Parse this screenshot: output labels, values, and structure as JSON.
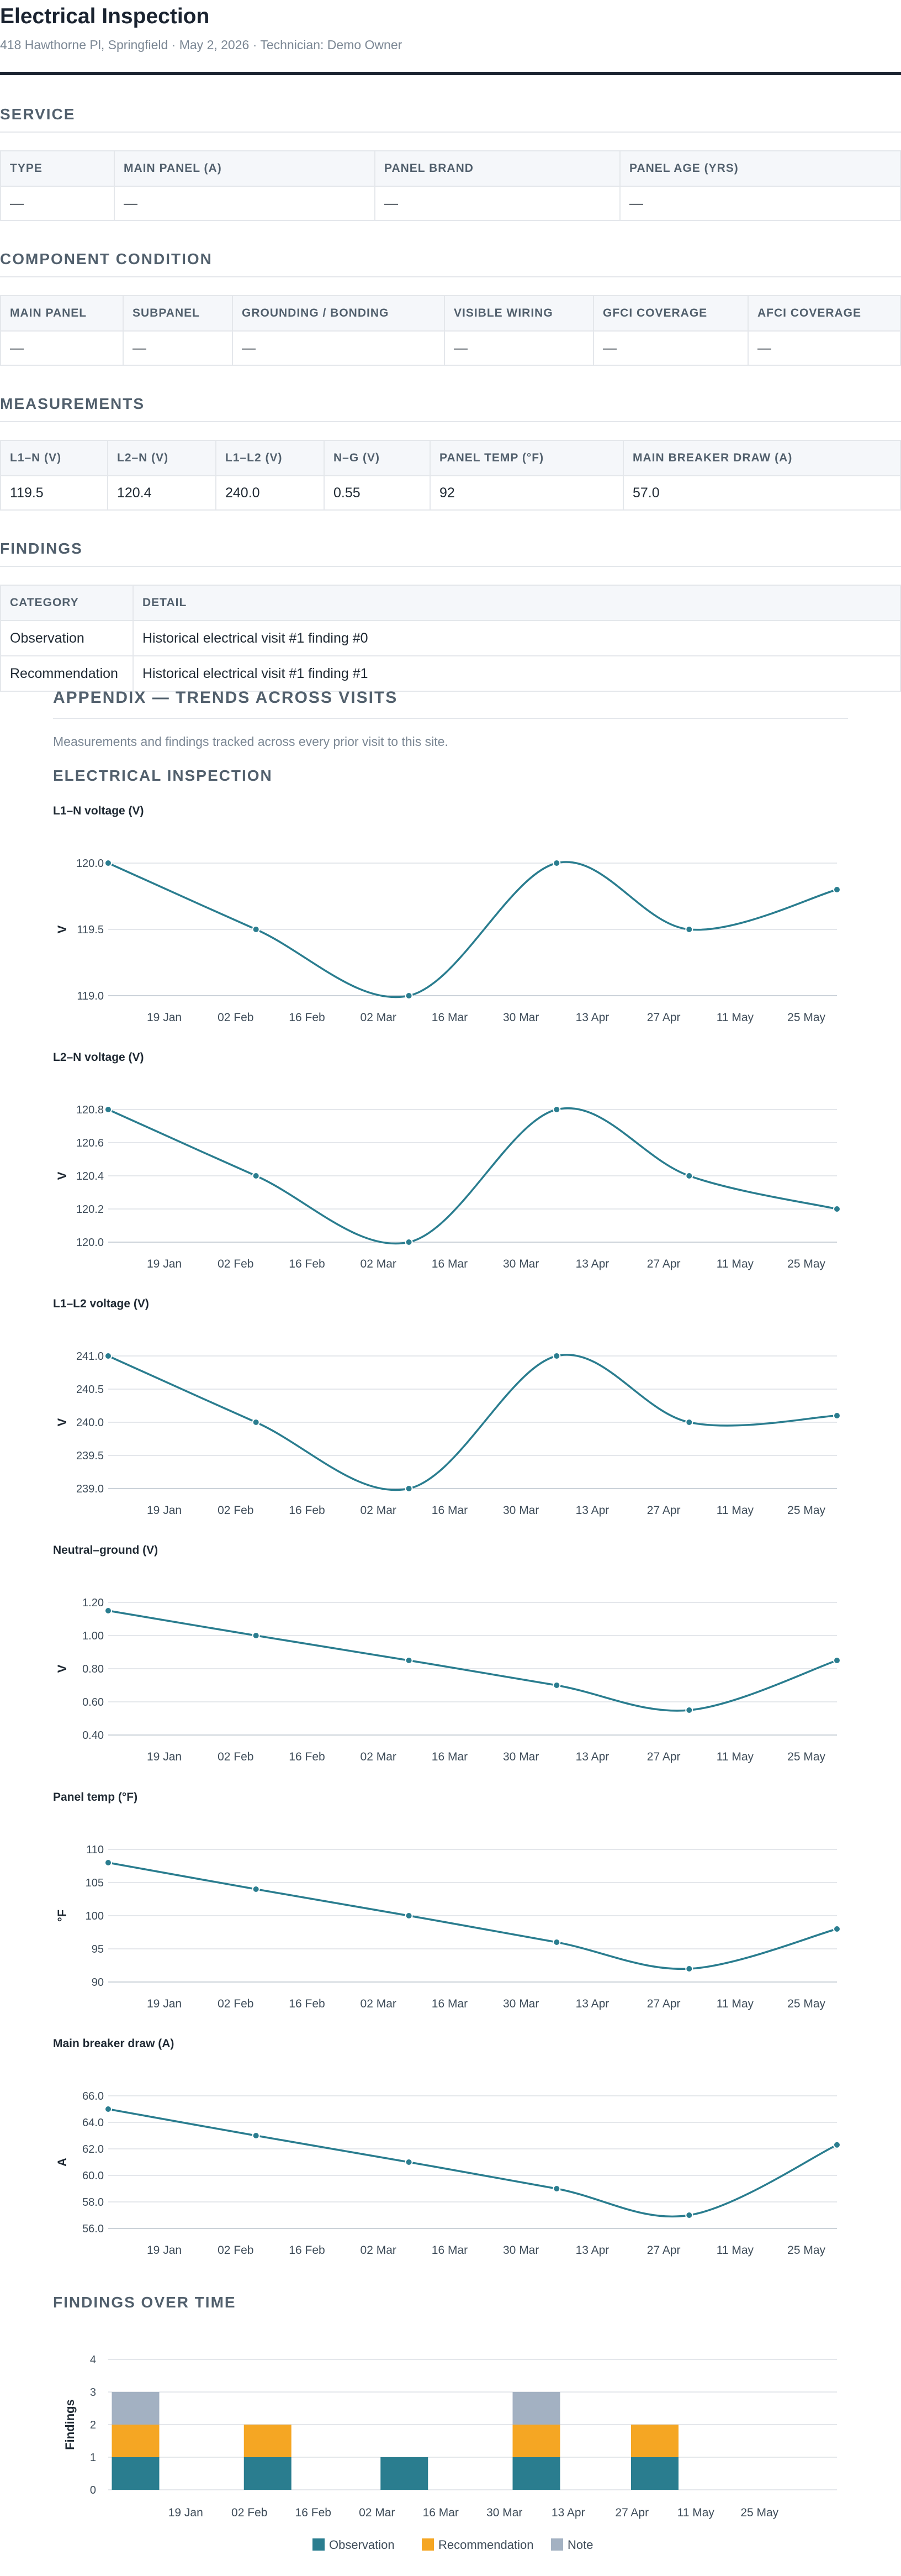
{
  "header": {
    "title": "Electrical Inspection",
    "meta": "418 Hawthorne Pl, Springfield · May 2, 2026 · Technician: Demo Owner"
  },
  "service": {
    "heading": "SERVICE",
    "columns": [
      "TYPE",
      "MAIN PANEL (A)",
      "PANEL BRAND",
      "PANEL AGE (YRS)"
    ],
    "row": [
      "—",
      "—",
      "—",
      "—"
    ]
  },
  "components": {
    "heading": "COMPONENT CONDITION",
    "columns": [
      "MAIN PANEL",
      "SUBPANEL",
      "GROUNDING / BONDING",
      "VISIBLE WIRING",
      "GFCI COVERAGE",
      "AFCI COVERAGE"
    ],
    "row": [
      "—",
      "—",
      "—",
      "—",
      "—",
      "—"
    ]
  },
  "measurements": {
    "heading": "MEASUREMENTS",
    "columns": [
      "L1–N (V)",
      "L2–N (V)",
      "L1–L2 (V)",
      "N–G (V)",
      "PANEL TEMP (°F)",
      "MAIN BREAKER DRAW (A)"
    ],
    "row": [
      "119.5",
      "120.4",
      "240.0",
      "0.55",
      "92",
      "57.0"
    ]
  },
  "findings": {
    "heading": "FINDINGS",
    "columns": [
      "CATEGORY",
      "DETAIL"
    ],
    "rows": [
      [
        "Observation",
        "Historical electrical visit #1 finding #0"
      ],
      [
        "Recommendation",
        "Historical electrical visit #1 finding #1"
      ]
    ]
  },
  "appendix": {
    "title": "APPENDIX — TRENDS ACROSS VISITS",
    "intro": "Measurements and findings tracked across every prior visit to this site.",
    "subheading": "ELECTRICAL INSPECTION",
    "findings_heading": "FINDINGS OVER TIME"
  },
  "colors": {
    "line": "#2a7d8f",
    "observation": "#2a7d8f",
    "recommendation": "#f5a623",
    "note": "#a3b1c2",
    "grid": "#e4e7eb",
    "axis_text": "#3e4c59"
  },
  "chart_data": [
    {
      "type": "line",
      "title": "L1–N voltage (V)",
      "ylabel": "V",
      "x": [
        "2026-01-08",
        "2026-02-06",
        "2026-03-08",
        "2026-04-06",
        "2026-05-02",
        "2026-05-31"
      ],
      "values": [
        120.0,
        119.5,
        119.0,
        120.0,
        119.5,
        119.8
      ],
      "ylim": [
        119.0,
        120.0
      ],
      "yticks": [
        "119.0",
        "119.5",
        "120.0"
      ],
      "xticks": [
        "19 Jan",
        "02 Feb",
        "16 Feb",
        "02 Mar",
        "16 Mar",
        "30 Mar",
        "13 Apr",
        "27 Apr",
        "11 May",
        "25 May"
      ]
    },
    {
      "type": "line",
      "title": "L2–N voltage (V)",
      "ylabel": "V",
      "x": [
        "2026-01-08",
        "2026-02-06",
        "2026-03-08",
        "2026-04-06",
        "2026-05-02",
        "2026-05-31"
      ],
      "values": [
        120.8,
        120.4,
        120.0,
        120.8,
        120.4,
        120.2
      ],
      "ylim": [
        120.0,
        120.8
      ],
      "yticks": [
        "120.0",
        "120.2",
        "120.4",
        "120.6",
        "120.8"
      ],
      "xticks": [
        "19 Jan",
        "02 Feb",
        "16 Feb",
        "02 Mar",
        "16 Mar",
        "30 Mar",
        "13 Apr",
        "27 Apr",
        "11 May",
        "25 May"
      ]
    },
    {
      "type": "line",
      "title": "L1–L2 voltage (V)",
      "ylabel": "V",
      "x": [
        "2026-01-08",
        "2026-02-06",
        "2026-03-08",
        "2026-04-06",
        "2026-05-02",
        "2026-05-31"
      ],
      "values": [
        241.0,
        240.0,
        239.0,
        241.0,
        240.0,
        240.1
      ],
      "ylim": [
        239.0,
        241.0
      ],
      "yticks": [
        "239.0",
        "239.5",
        "240.0",
        "240.5",
        "241.0"
      ],
      "xticks": [
        "19 Jan",
        "02 Feb",
        "16 Feb",
        "02 Mar",
        "16 Mar",
        "30 Mar",
        "13 Apr",
        "27 Apr",
        "11 May",
        "25 May"
      ]
    },
    {
      "type": "line",
      "title": "Neutral–ground (V)",
      "ylabel": "V",
      "x": [
        "2026-01-08",
        "2026-02-06",
        "2026-03-08",
        "2026-04-06",
        "2026-05-02",
        "2026-05-31"
      ],
      "values": [
        1.15,
        1.0,
        0.85,
        0.7,
        0.55,
        0.85
      ],
      "ylim": [
        0.4,
        1.2
      ],
      "yticks": [
        "0.40",
        "0.60",
        "0.80",
        "1.00",
        "1.20"
      ],
      "xticks": [
        "19 Jan",
        "02 Feb",
        "16 Feb",
        "02 Mar",
        "16 Mar",
        "30 Mar",
        "13 Apr",
        "27 Apr",
        "11 May",
        "25 May"
      ]
    },
    {
      "type": "line",
      "title": "Panel temp (°F)",
      "ylabel": "°F",
      "x": [
        "2026-01-08",
        "2026-02-06",
        "2026-03-08",
        "2026-04-06",
        "2026-05-02",
        "2026-05-31"
      ],
      "values": [
        108,
        104,
        100,
        96,
        92,
        98
      ],
      "ylim": [
        90,
        110
      ],
      "yticks": [
        "90",
        "95",
        "100",
        "105",
        "110"
      ],
      "xticks": [
        "19 Jan",
        "02 Feb",
        "16 Feb",
        "02 Mar",
        "16 Mar",
        "30 Mar",
        "13 Apr",
        "27 Apr",
        "11 May",
        "25 May"
      ]
    },
    {
      "type": "line",
      "title": "Main breaker draw (A)",
      "ylabel": "A",
      "x": [
        "2026-01-08",
        "2026-02-06",
        "2026-03-08",
        "2026-04-06",
        "2026-05-02",
        "2026-05-31"
      ],
      "values": [
        65.0,
        63.0,
        61.0,
        59.0,
        57.0,
        62.3
      ],
      "ylim": [
        56.0,
        66.0
      ],
      "yticks": [
        "56.0",
        "58.0",
        "60.0",
        "62.0",
        "64.0",
        "66.0"
      ],
      "xticks": [
        "19 Jan",
        "02 Feb",
        "16 Feb",
        "02 Mar",
        "16 Mar",
        "30 Mar",
        "13 Apr",
        "27 Apr",
        "11 May",
        "25 May"
      ]
    },
    {
      "type": "bar",
      "title": "",
      "ylabel": "Findings",
      "x": [
        "2026-01-08",
        "2026-02-06",
        "2026-03-08",
        "2026-04-06",
        "2026-05-02"
      ],
      "series": [
        {
          "name": "Observation",
          "values": [
            1,
            1,
            1,
            1,
            1
          ]
        },
        {
          "name": "Recommendation",
          "values": [
            1,
            1,
            0,
            1,
            1
          ]
        },
        {
          "name": "Note",
          "values": [
            1,
            0,
            0,
            1,
            0
          ]
        }
      ],
      "ylim": [
        0,
        4
      ],
      "yticks": [
        "0",
        "1",
        "2",
        "3",
        "4"
      ],
      "xticks": [
        "19 Jan",
        "02 Feb",
        "16 Feb",
        "02 Mar",
        "16 Mar",
        "30 Mar",
        "13 Apr",
        "27 Apr",
        "11 May",
        "25 May"
      ],
      "legend": "bottom-center"
    }
  ]
}
